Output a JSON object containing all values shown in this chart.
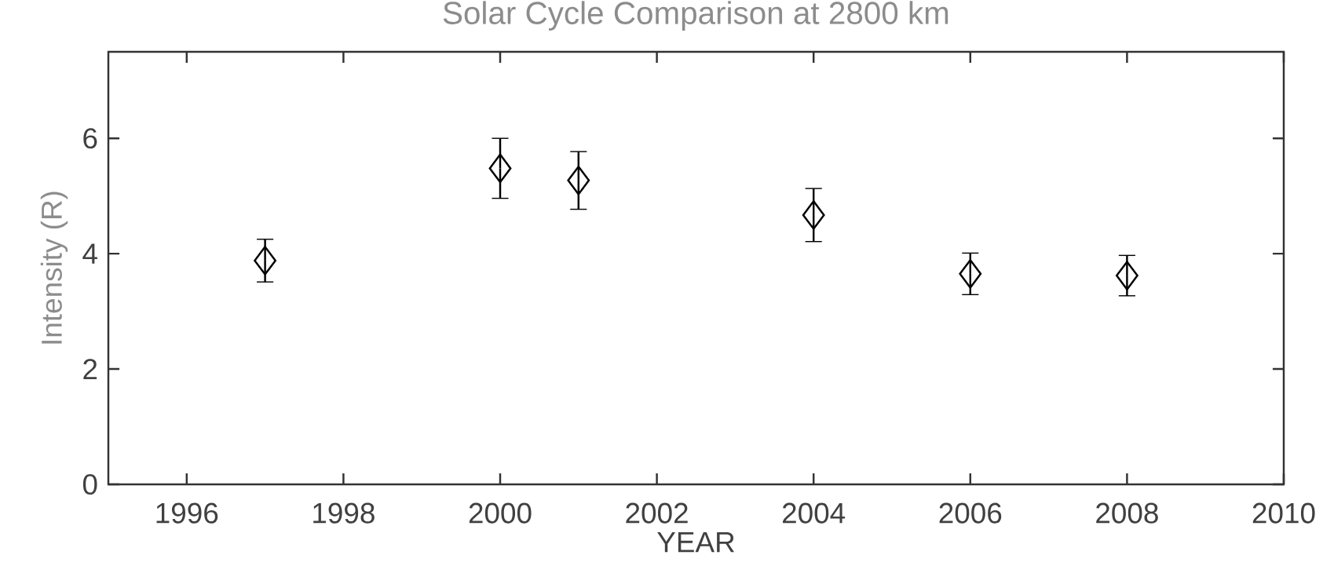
{
  "chart_data": {
    "type": "scatter",
    "title": "Solar Cycle Comparison at 2800 km",
    "xlabel": "YEAR",
    "ylabel": "Intensity (R)",
    "x": [
      1997,
      2000,
      2001,
      2004,
      2006,
      2008
    ],
    "values": [
      3.88,
      5.48,
      5.27,
      4.67,
      3.65,
      3.62
    ],
    "errors": [
      0.37,
      0.52,
      0.5,
      0.46,
      0.36,
      0.35
    ],
    "color": "#000000",
    "marker": "diamond",
    "xlim": [
      1995,
      2010
    ],
    "ylim": [
      0,
      7.5
    ],
    "xticks": [
      1996,
      1998,
      2000,
      2002,
      2004,
      2006,
      2008,
      2010
    ],
    "yticks": [
      0,
      2,
      4,
      6
    ]
  }
}
